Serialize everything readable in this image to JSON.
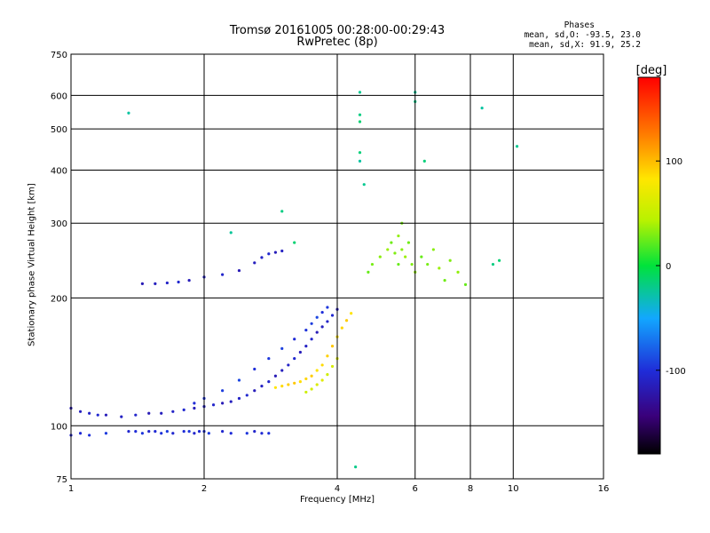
{
  "title_line1": "Tromsø 20161005 00:28:00-00:29:43",
  "title_line2": "RwPretec (8p)",
  "stats": {
    "heading": "Phases",
    "line_o": "mean, sd,O: -93.5, 23.0",
    "line_x": "mean, sd,X:  91.9, 25.2"
  },
  "colors": {
    "grid": "#000000",
    "background": "#ffffff"
  },
  "chart_data": {
    "type": "scatter",
    "xlabel": "Frequency [MHz]",
    "ylabel": "Stationary phase Virtual Height [km]",
    "xscale": "log",
    "yscale": "log",
    "xlim": [
      1,
      16
    ],
    "ylim": [
      75,
      750
    ],
    "xticks": [
      1,
      2,
      4,
      6,
      8,
      10,
      16
    ],
    "xtick_labels": [
      "1",
      "2",
      "4",
      "6",
      "8",
      "10",
      "16"
    ],
    "yticks": [
      75,
      100,
      200,
      300,
      400,
      500,
      600,
      750
    ],
    "ytick_labels": [
      "75",
      "100",
      "200",
      "300",
      "400",
      "500",
      "600",
      "750"
    ],
    "grid": true,
    "colorbar": {
      "label": "[deg]",
      "range": [
        -180,
        180
      ],
      "ticks": [
        100,
        0,
        -100
      ],
      "tick_labels": [
        "100",
        "0",
        "-100"
      ]
    },
    "series": [
      {
        "name": "low-layer-trace",
        "phase": -110,
        "x": [
          1.0,
          1.05,
          1.1,
          1.15,
          1.2,
          1.3,
          1.4,
          1.5,
          1.6,
          1.7,
          1.8,
          1.9,
          2.0,
          2.1,
          2.2,
          2.3,
          2.4,
          2.5,
          2.6,
          2.7,
          2.8,
          2.9,
          3.0,
          3.1,
          3.2,
          3.3,
          3.4,
          3.5,
          3.6,
          3.7,
          3.8,
          3.9,
          4.0
        ],
        "y": [
          110,
          108,
          107,
          106,
          106,
          105,
          106,
          107,
          107,
          108,
          109,
          110,
          111,
          112,
          113,
          114,
          116,
          118,
          121,
          124,
          127,
          131,
          135,
          139,
          144,
          149,
          154,
          160,
          166,
          171,
          176,
          182,
          188
        ]
      },
      {
        "name": "f-trace-upper",
        "phase": -95,
        "x": [
          1.9,
          2.0,
          2.2,
          2.4,
          2.6,
          2.8,
          3.0,
          3.2,
          3.4,
          3.5,
          3.6,
          3.7,
          3.8
        ],
        "y": [
          113,
          116,
          121,
          128,
          136,
          144,
          152,
          160,
          168,
          174,
          180,
          185,
          190
        ]
      },
      {
        "name": "x-mode-trace",
        "phase": 90,
        "x": [
          2.9,
          3.0,
          3.1,
          3.2,
          3.3,
          3.4,
          3.5,
          3.6,
          3.7,
          3.8,
          3.9,
          4.0,
          4.1,
          4.2,
          4.3
        ],
        "y": [
          123,
          124,
          125,
          126,
          127,
          129,
          131,
          135,
          139,
          146,
          154,
          162,
          170,
          177,
          184
        ]
      },
      {
        "name": "yellow-green",
        "phase": 60,
        "x": [
          3.4,
          3.5,
          3.6,
          3.7,
          3.8,
          3.9,
          4.0
        ],
        "y": [
          120,
          122,
          125,
          128,
          132,
          138,
          144
        ]
      },
      {
        "name": "upper-ray",
        "phase": -110,
        "x": [
          1.45,
          1.55,
          1.65,
          1.75,
          1.85,
          2.0,
          2.2,
          2.4,
          2.6,
          2.7,
          2.8,
          2.9,
          3.0
        ],
        "y": [
          216,
          216,
          217,
          218,
          220,
          224,
          227,
          232,
          242,
          249,
          254,
          256,
          258
        ]
      },
      {
        "name": "lower-cluster",
        "phase": -100,
        "x": [
          1.0,
          1.05,
          1.1,
          1.2,
          1.35,
          1.4,
          1.45,
          1.5,
          1.55,
          1.6,
          1.65,
          1.7,
          1.8,
          1.85,
          1.9,
          1.95,
          2.0,
          2.05,
          2.2,
          2.3,
          2.5,
          2.6,
          2.7,
          2.8
        ],
        "y": [
          95,
          96,
          95,
          96,
          97,
          97,
          96,
          97,
          97,
          96,
          97,
          96,
          97,
          97,
          96,
          97,
          97,
          96,
          97,
          96,
          96,
          97,
          96,
          96
        ]
      },
      {
        "name": "f2-cluster",
        "phase": 30,
        "x": [
          4.7,
          4.8,
          5.0,
          5.2,
          5.3,
          5.4,
          5.5,
          5.5,
          5.6,
          5.6,
          5.7,
          5.8,
          5.9,
          6.0,
          6.2,
          6.4,
          6.6,
          6.8,
          7.0,
          7.2,
          7.5,
          7.8
        ],
        "y": [
          230,
          240,
          250,
          260,
          270,
          255,
          280,
          240,
          300,
          260,
          250,
          270,
          240,
          230,
          250,
          240,
          260,
          235,
          220,
          245,
          230,
          215
        ]
      },
      {
        "name": "sparse-points",
        "phase": -20,
        "x": [
          1.35,
          4.5,
          4.5,
          4.5,
          6.0,
          6.0,
          6.3,
          8.5,
          10.2,
          3.0,
          3.2,
          2.3,
          4.4,
          4.5,
          4.5,
          4.6,
          9.0,
          9.3
        ],
        "y": [
          545,
          610,
          540,
          520,
          610,
          580,
          420,
          560,
          455,
          320,
          270,
          285,
          80,
          440,
          420,
          370,
          240,
          245
        ]
      }
    ]
  }
}
